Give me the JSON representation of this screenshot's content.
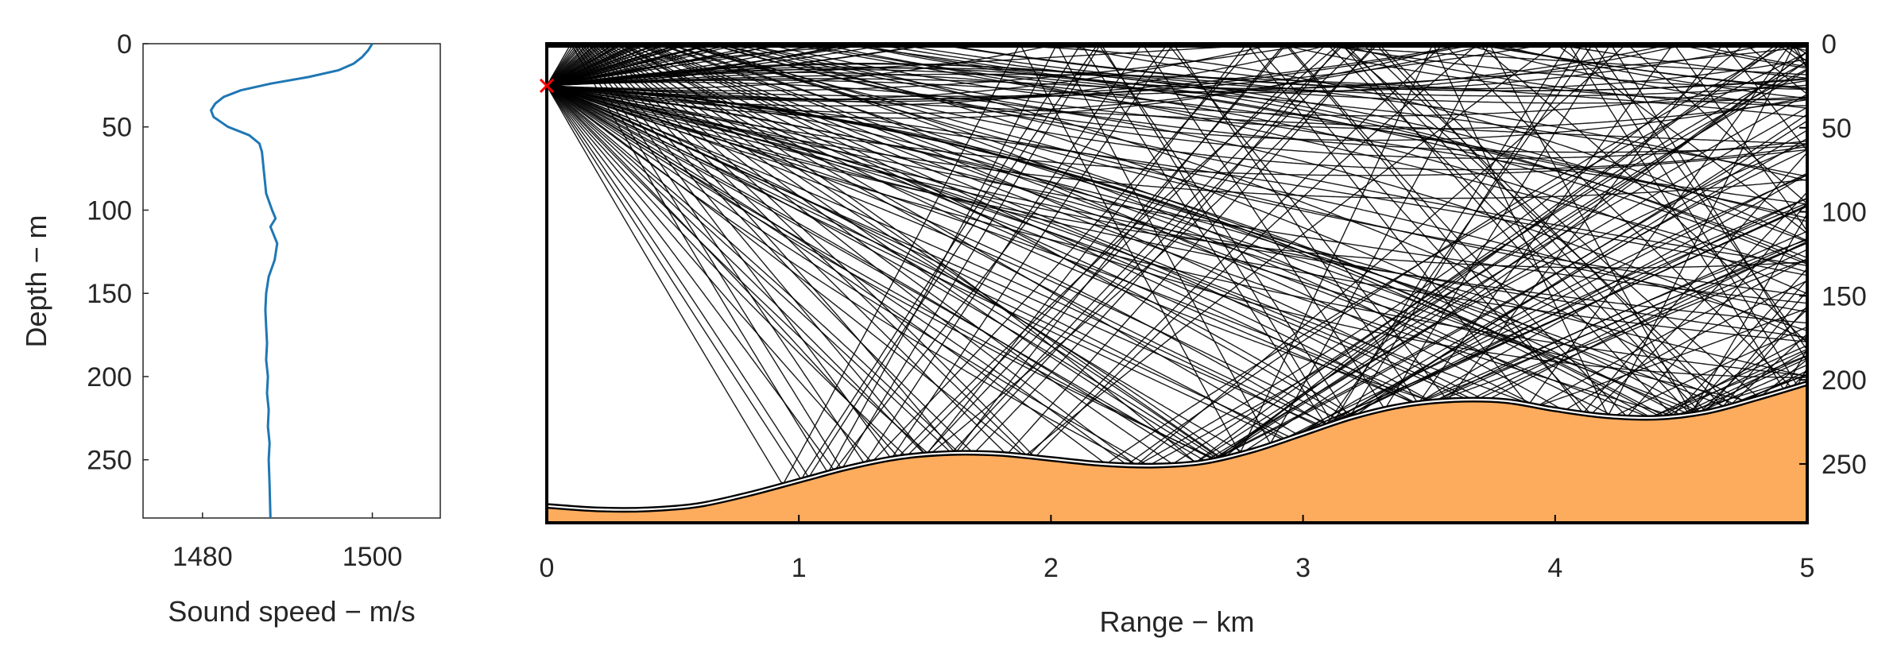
{
  "chart_data": [
    {
      "type": "line",
      "xlabel": "Sound speed − m/s",
      "ylabel": "Depth − m",
      "xlim": [
        1473,
        1508
      ],
      "ylim": [
        0,
        285
      ],
      "y_reversed": true,
      "xticks": [
        1480,
        1500
      ],
      "yticks": [
        0,
        50,
        100,
        150,
        200,
        250
      ],
      "series": [
        {
          "color": "#1f77b4",
          "x": [
            1500.0,
            1499.5,
            1498.8,
            1497.8,
            1496.0,
            1492.5,
            1488.0,
            1484.5,
            1482.5,
            1481.5,
            1481.0,
            1481.3,
            1483.0,
            1485.5,
            1486.7,
            1487.0,
            1487.2,
            1487.5,
            1488.2,
            1488.6,
            1488.0,
            1488.4,
            1488.8,
            1488.5,
            1487.8,
            1487.5,
            1487.4,
            1487.5,
            1487.6,
            1487.5,
            1487.7,
            1487.6,
            1487.8,
            1487.7,
            1487.9,
            1487.8,
            1487.9,
            1488.0
          ],
          "y": [
            0,
            4,
            8,
            12,
            16,
            20,
            24,
            28,
            32,
            36,
            40,
            44,
            50,
            55,
            60,
            65,
            75,
            90,
            100,
            105,
            110,
            115,
            120,
            130,
            140,
            150,
            160,
            170,
            180,
            190,
            200,
            210,
            220,
            230,
            240,
            250,
            265,
            285
          ]
        }
      ]
    },
    {
      "type": "line",
      "xlabel": "Range − km",
      "ylabel": "",
      "xlim": [
        0,
        5
      ],
      "ylim": [
        0,
        285
      ],
      "y_reversed": true,
      "xticks": [
        0,
        1,
        2,
        3,
        4,
        5
      ],
      "yticks": [
        0,
        50,
        100,
        150,
        200,
        250
      ],
      "y_axis_side": "right",
      "source": {
        "range_km": 0,
        "depth_m": 25,
        "color": "#ff0000"
      },
      "ray_color": "#000000",
      "bathymetry": {
        "fill": "#fdac5e",
        "range_km": [
          0.0,
          0.2,
          0.4,
          0.6,
          0.8,
          1.0,
          1.2,
          1.4,
          1.6,
          1.8,
          2.0,
          2.2,
          2.4,
          2.6,
          2.8,
          3.0,
          3.2,
          3.4,
          3.6,
          3.8,
          4.0,
          4.2,
          4.4,
          4.6,
          4.8,
          5.0
        ],
        "depth_m": [
          275.0,
          277.0,
          277.0,
          274.5,
          268.0,
          260.0,
          252.0,
          246.0,
          243.5,
          244.0,
          247.0,
          250.0,
          251.0,
          249.0,
          242.0,
          232.0,
          222.0,
          215.0,
          212.0,
          212.5,
          217.5,
          221.5,
          222.5,
          219.0,
          211.0,
          202.0
        ]
      }
    }
  ]
}
